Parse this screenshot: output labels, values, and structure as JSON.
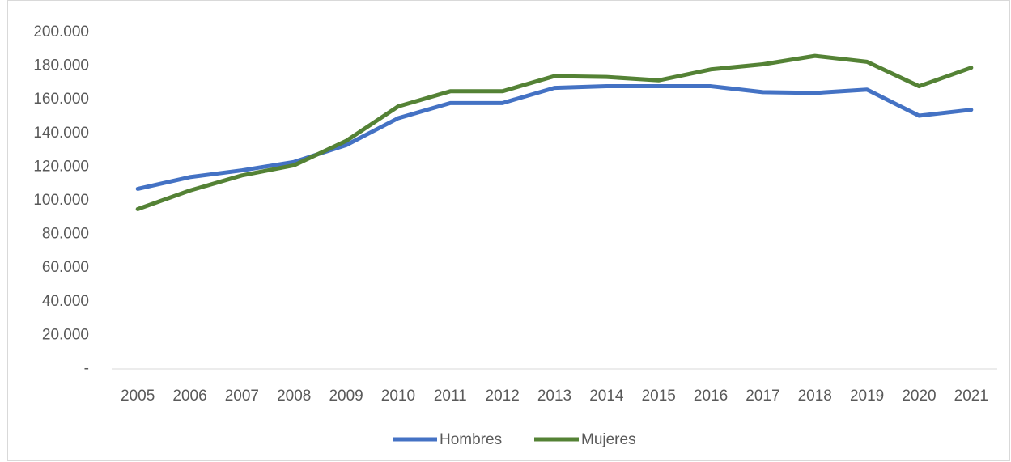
{
  "chart_data": {
    "type": "line",
    "categories": [
      "2005",
      "2006",
      "2007",
      "2008",
      "2009",
      "2010",
      "2011",
      "2012",
      "2013",
      "2014",
      "2015",
      "2016",
      "2017",
      "2018",
      "2019",
      "2020",
      "2021"
    ],
    "series": [
      {
        "name": "Hombres",
        "color": "#4472c4",
        "values": [
          107000,
          114000,
          118000,
          123000,
          133000,
          149000,
          158000,
          158000,
          167000,
          168000,
          168000,
          168000,
          164500,
          164000,
          166000,
          150500,
          154000
        ]
      },
      {
        "name": "Mujeres",
        "color": "#548235",
        "values": [
          95000,
          106000,
          115000,
          121000,
          135500,
          156000,
          165000,
          165000,
          174000,
          173500,
          171500,
          178000,
          181000,
          186000,
          182500,
          168000,
          179000
        ]
      }
    ],
    "ylim": [
      0,
      200000
    ],
    "yticks": [
      {
        "value": 0,
        "label": "-"
      },
      {
        "value": 20000,
        "label": "20.000"
      },
      {
        "value": 40000,
        "label": "40.000"
      },
      {
        "value": 60000,
        "label": "60.000"
      },
      {
        "value": 80000,
        "label": "80.000"
      },
      {
        "value": 100000,
        "label": "100.000"
      },
      {
        "value": 120000,
        "label": "120.000"
      },
      {
        "value": 140000,
        "label": "140.000"
      },
      {
        "value": 160000,
        "label": "160.000"
      },
      {
        "value": 180000,
        "label": "180.000"
      },
      {
        "value": 200000,
        "label": "200.000"
      }
    ],
    "grid": false,
    "legend": "bottom"
  }
}
